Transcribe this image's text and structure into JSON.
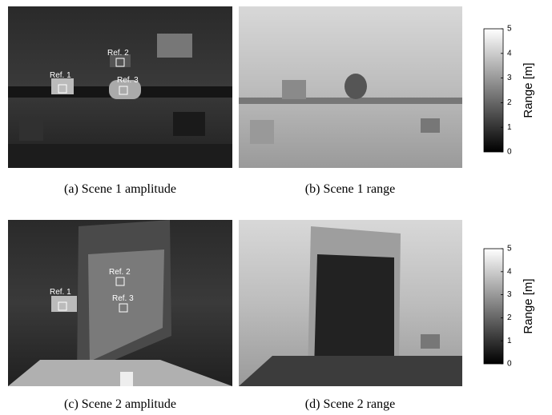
{
  "panels": [
    {
      "caption": "(a) Scene 1 amplitude",
      "refs": [
        "Ref. 1",
        "Ref. 2",
        "Ref. 3"
      ]
    },
    {
      "caption": "(b) Scene 1 range"
    },
    {
      "caption": "(c) Scene 2 amplitude",
      "refs": [
        "Ref. 1",
        "Ref. 2",
        "Ref. 3"
      ]
    },
    {
      "caption": "(d) Scene 2 range"
    }
  ],
  "colorbars": [
    {
      "label": "Range [m]",
      "lim": [
        0,
        5
      ],
      "ticks": [
        0,
        1,
        2,
        3,
        4,
        5
      ]
    },
    {
      "label": "Range [m]",
      "lim": [
        0,
        5
      ],
      "ticks": [
        0,
        1,
        2,
        3,
        4,
        5
      ]
    }
  ]
}
